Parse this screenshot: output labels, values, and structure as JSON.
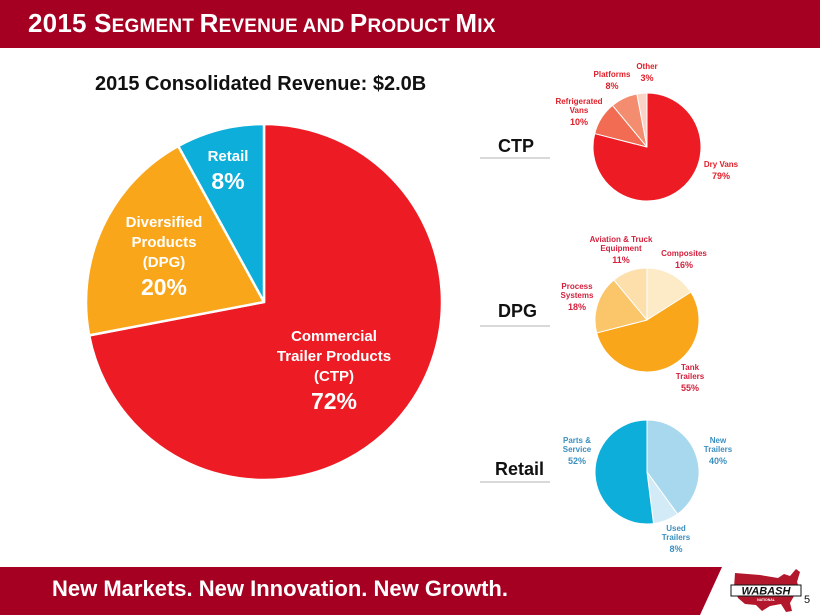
{
  "header": {
    "title_parts": [
      {
        "big": "2015 S",
        "small": "EGMENT "
      },
      {
        "big": "R",
        "small": "EVENUE AND "
      },
      {
        "big": "P",
        "small": "RODUCT "
      },
      {
        "big": "M",
        "small": "IX"
      }
    ],
    "title": "2015 Segment Revenue and Product Mix"
  },
  "subtitle": "2015 Consolidated Revenue: $2.0B",
  "segments": {
    "ctp": "CTP",
    "dpg": "DPG",
    "retail": "Retail"
  },
  "footer": {
    "tagline": "New Markets. New Innovation. New Growth.",
    "logo_text": "WABASH",
    "logo_subtext": "NATIONAL",
    "page_number": "5"
  },
  "colors": {
    "brand_red": "#a50021",
    "ctp_red": "#ed1c24",
    "dpg_orange": "#f9a61a",
    "retail_blue": "#0eaedb"
  },
  "chart_data": [
    {
      "type": "pie",
      "title": "2015 Consolidated Revenue: $2.0B",
      "categories": [
        "Commercial Trailer Products (CTP)",
        "Diversified Products (DPG)",
        "Retail"
      ],
      "values": [
        72,
        20,
        8
      ],
      "labels": [
        {
          "lines": [
            "Commercial",
            "Trailer Products",
            "(CTP)"
          ],
          "pct": "72%"
        },
        {
          "lines": [
            "Diversified",
            "Products",
            "(DPG)"
          ],
          "pct": "20%"
        },
        {
          "lines": [
            "Retail"
          ],
          "pct": "8%"
        }
      ],
      "colors": [
        "#ed1c24",
        "#f9a61a",
        "#0eaedb"
      ],
      "start": "12 o'clock, clockwise"
    },
    {
      "type": "pie",
      "title": "CTP",
      "categories": [
        "Dry Vans",
        "Refrigerated Vans",
        "Platforms",
        "Other"
      ],
      "values": [
        79,
        10,
        8,
        3
      ],
      "labels": [
        {
          "lines": [
            "Dry Vans"
          ],
          "pct": "79%"
        },
        {
          "lines": [
            "Refrigerated",
            "Vans"
          ],
          "pct": "10%"
        },
        {
          "lines": [
            "Platforms"
          ],
          "pct": "8%"
        },
        {
          "lines": [
            "Other"
          ],
          "pct": "3%"
        }
      ],
      "colors": [
        "#ed1c24",
        "#f26b53",
        "#f48c6f",
        "#fbd3c6"
      ],
      "label_color": "#e0202a"
    },
    {
      "type": "pie",
      "title": "DPG",
      "categories": [
        "Composites",
        "Tank Trailers",
        "Process Systems",
        "Aviation & Truck Equipment"
      ],
      "values": [
        16,
        55,
        18,
        11
      ],
      "labels": [
        {
          "lines": [
            "Composites"
          ],
          "pct": "16%"
        },
        {
          "lines": [
            "Tank",
            "Trailers"
          ],
          "pct": "55%"
        },
        {
          "lines": [
            "Process",
            "Systems"
          ],
          "pct": "18%"
        },
        {
          "lines": [
            "Aviation & Truck",
            "Equipment"
          ],
          "pct": "11%"
        }
      ],
      "colors": [
        "#fdebc8",
        "#f9a61a",
        "#fbc56a",
        "#fddfac"
      ],
      "label_color": "#d4213d"
    },
    {
      "type": "pie",
      "title": "Retail",
      "categories": [
        "New Trailers",
        "Used Trailers",
        "Parts & Service"
      ],
      "values": [
        40,
        8,
        52
      ],
      "labels": [
        {
          "lines": [
            "New",
            "Trailers"
          ],
          "pct": "40%"
        },
        {
          "lines": [
            "Used",
            "Trailers"
          ],
          "pct": "8%"
        },
        {
          "lines": [
            "Parts &",
            "Service"
          ],
          "pct": "52%"
        }
      ],
      "colors": [
        "#a8d8ee",
        "#d3ebf6",
        "#0eaedb"
      ],
      "label_color": "#3b8fbf"
    }
  ]
}
